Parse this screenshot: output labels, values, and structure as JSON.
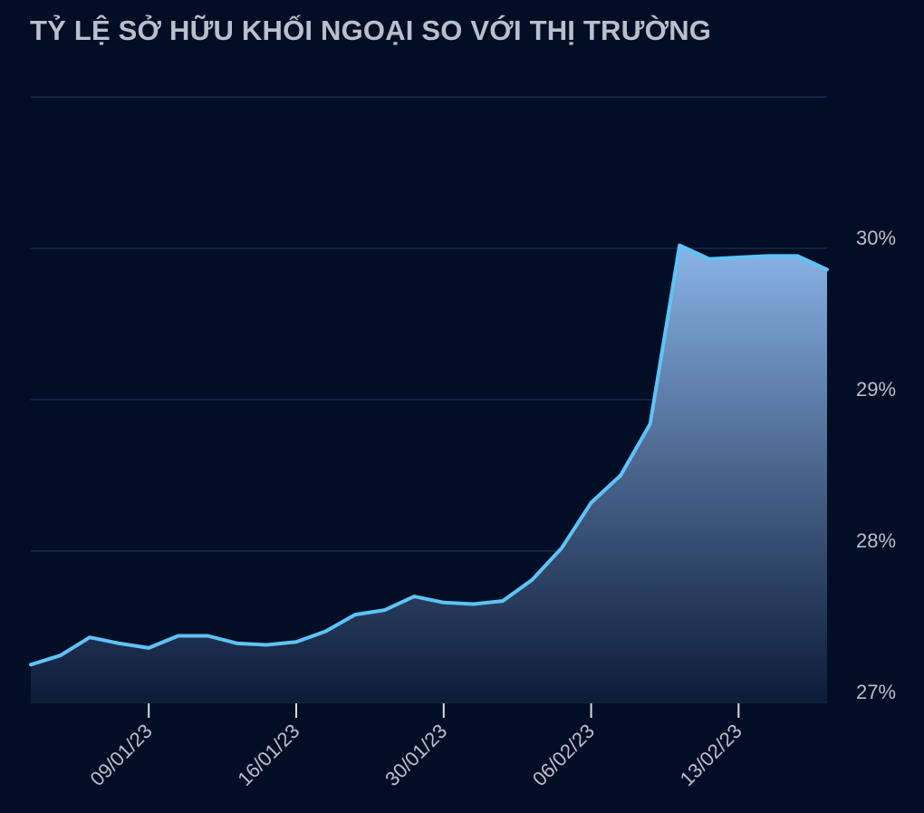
{
  "chart_data": {
    "type": "area",
    "title": "TỶ LỆ SỞ HỮU KHỐI NGOẠI SO VỚI THỊ TRƯỜNG",
    "xlabel": "",
    "ylabel": "",
    "ylim": [
      27,
      31
    ],
    "grid": true,
    "y_axis_position": "right",
    "legend": "none",
    "yticks": [
      27,
      28,
      29,
      30
    ],
    "ytick_labels": [
      "27%",
      "28%",
      "29%",
      "30%"
    ],
    "xticks": [
      {
        "index": 4,
        "label": "09/01/23"
      },
      {
        "index": 9,
        "label": "16/01/23"
      },
      {
        "index": 14,
        "label": "30/01/23"
      },
      {
        "index": 19,
        "label": "06/02/23"
      },
      {
        "index": 24,
        "label": "13/02/23"
      }
    ],
    "series": [
      {
        "values": [
          27.25,
          27.31,
          27.43,
          27.39,
          27.36,
          27.44,
          27.44,
          27.39,
          27.38,
          27.4,
          27.47,
          27.58,
          27.61,
          27.7,
          27.66,
          27.65,
          27.67,
          27.81,
          28.02,
          28.32,
          28.5,
          28.84,
          30.02,
          29.93,
          29.94,
          29.95,
          29.95,
          29.86
        ]
      }
    ],
    "colors": {
      "background": "#020e26",
      "line": "#5ec3f7",
      "fill_top": "#8ab4e8",
      "fill_bottom": "#0e1d3a",
      "grid": "#1b2a4a",
      "text": "#b9bfcb"
    }
  }
}
